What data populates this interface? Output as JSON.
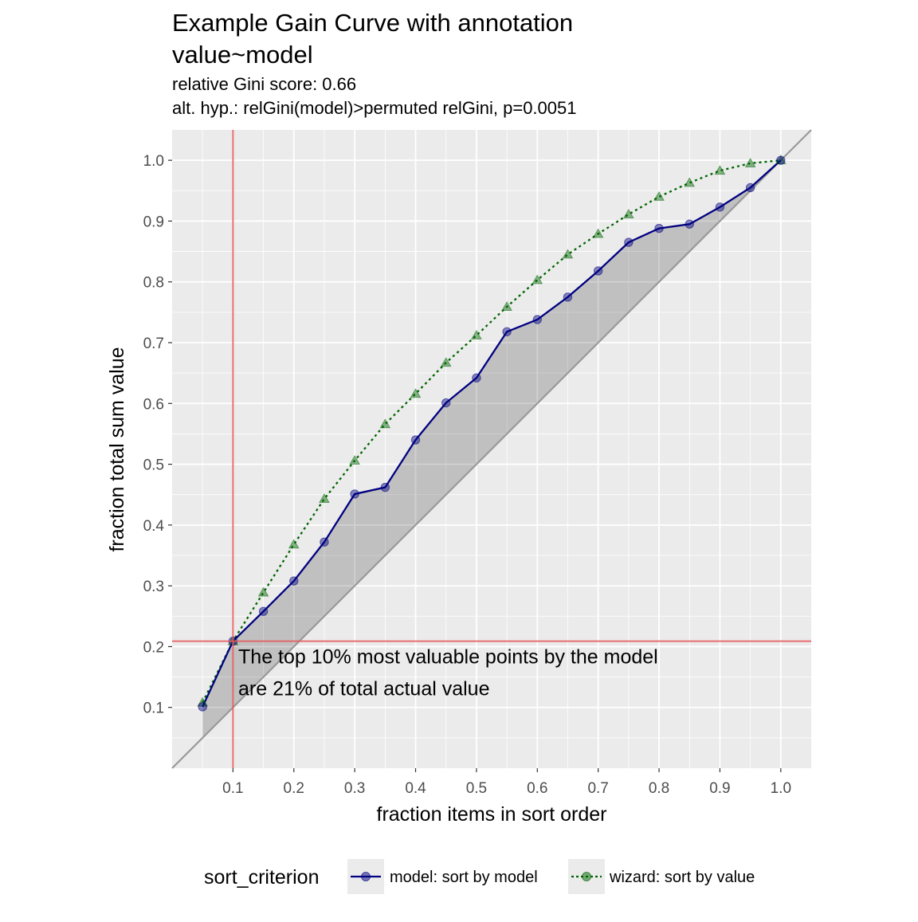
{
  "chart_data": {
    "type": "line",
    "title": [
      "Example Gain Curve with annotation",
      "value~model"
    ],
    "subtitle": [
      "relative Gini score: 0.66",
      "alt. hyp.: relGini(model)>permuted relGini, p=0.0051"
    ],
    "xlabel": "fraction items in sort order",
    "ylabel": "fraction total sum value",
    "xlim": [
      0,
      1.05
    ],
    "ylim": [
      0,
      1.05
    ],
    "x_ticks": [
      "0.1",
      "0.2",
      "0.3",
      "0.4",
      "0.5",
      "0.6",
      "0.7",
      "0.8",
      "0.9",
      "1.0"
    ],
    "y_ticks": [
      "0.1",
      "0.2",
      "0.3",
      "0.4",
      "0.5",
      "0.6",
      "0.7",
      "0.8",
      "0.9",
      "1.0"
    ],
    "grid": true,
    "series": [
      {
        "name": "model: sort by model",
        "color": "#000080",
        "marker": "circle",
        "linestyle": "solid",
        "x": [
          0.05,
          0.1,
          0.15,
          0.2,
          0.25,
          0.3,
          0.35,
          0.4,
          0.45,
          0.5,
          0.55,
          0.6,
          0.65,
          0.7,
          0.75,
          0.8,
          0.85,
          0.9,
          0.95,
          1.0
        ],
        "values": [
          0.101,
          0.209,
          0.258,
          0.308,
          0.372,
          0.451,
          0.462,
          0.54,
          0.601,
          0.642,
          0.718,
          0.738,
          0.775,
          0.818,
          0.865,
          0.888,
          0.895,
          0.923,
          0.955,
          1.0
        ]
      },
      {
        "name": "wizard: sort by value",
        "color": "#006400",
        "marker": "triangle",
        "linestyle": "dotted",
        "x": [
          0.05,
          0.1,
          0.15,
          0.2,
          0.25,
          0.3,
          0.35,
          0.4,
          0.45,
          0.5,
          0.55,
          0.6,
          0.65,
          0.7,
          0.75,
          0.8,
          0.85,
          0.9,
          0.95,
          1.0
        ],
        "values": [
          0.108,
          0.209,
          0.289,
          0.368,
          0.443,
          0.506,
          0.566,
          0.616,
          0.667,
          0.712,
          0.759,
          0.803,
          0.845,
          0.879,
          0.911,
          0.94,
          0.963,
          0.983,
          0.995,
          1.0
        ]
      }
    ],
    "diagonal": {
      "from": [
        0,
        0
      ],
      "to": [
        1.05,
        1.05
      ],
      "color": "#999999"
    },
    "reference_lines": {
      "x": 0.1,
      "y": 0.209,
      "color": "#e8585c"
    },
    "annotation": {
      "lines": [
        "The top 10% most valuable points by the model",
        "are 21% of total actual value"
      ],
      "x": 0.11,
      "y": 0.2
    },
    "legend": {
      "title": "sort_criterion",
      "position": "bottom"
    }
  }
}
